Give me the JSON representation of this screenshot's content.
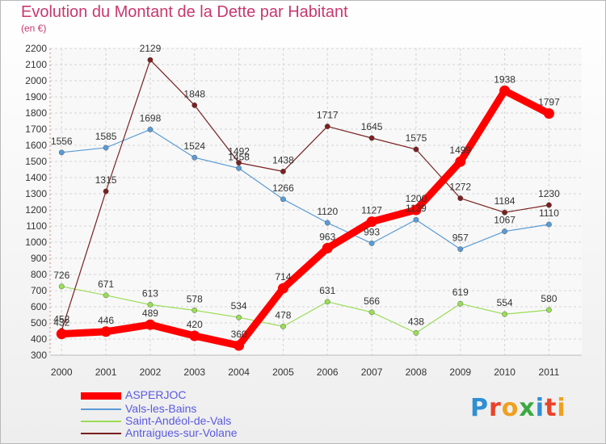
{
  "title": "Evolution du Montant de la Dette par Habitant",
  "subtitle": "(en €)",
  "logo": {
    "text": "Proxiti",
    "letter_colors": [
      "#2e8fd4",
      "#e8442a",
      "#f0a020",
      "#3aaa40",
      "#2e8fd4",
      "#e8442a",
      "#f0a020"
    ]
  },
  "chart_data": {
    "type": "line",
    "x": [
      2000,
      2001,
      2002,
      2003,
      2004,
      2005,
      2006,
      2007,
      2008,
      2009,
      2010,
      2011
    ],
    "ylim": [
      300,
      2200
    ],
    "yticks": [
      300,
      400,
      500,
      600,
      700,
      800,
      900,
      1000,
      1100,
      1200,
      1300,
      1400,
      1500,
      1600,
      1700,
      1800,
      1900,
      2000,
      2100,
      2200
    ],
    "grid": true,
    "legend": "bottom-left",
    "series": [
      {
        "name": "ASPERJOC",
        "color": "#ff0000",
        "values": [
          432,
          446,
          489,
          420,
          360,
          714,
          963,
          1127,
          1200,
          1499,
          1938,
          1797
        ]
      },
      {
        "name": "Vals-les-Bains",
        "color": "#5a9bd5",
        "values": [
          1556,
          1585,
          1698,
          1524,
          1458,
          1266,
          1120,
          993,
          1139,
          957,
          1067,
          1110
        ]
      },
      {
        "name": "Saint-Andéol-de-Vals",
        "color": "#99dd55",
        "values": [
          726,
          671,
          613,
          578,
          534,
          478,
          631,
          566,
          438,
          619,
          554,
          580
        ]
      },
      {
        "name": "Antraigues-sur-Volane",
        "color": "#7a2020",
        "values": [
          452,
          1315,
          2129,
          1848,
          1492,
          1438,
          1717,
          1645,
          1575,
          1272,
          1184,
          1230
        ]
      }
    ]
  }
}
